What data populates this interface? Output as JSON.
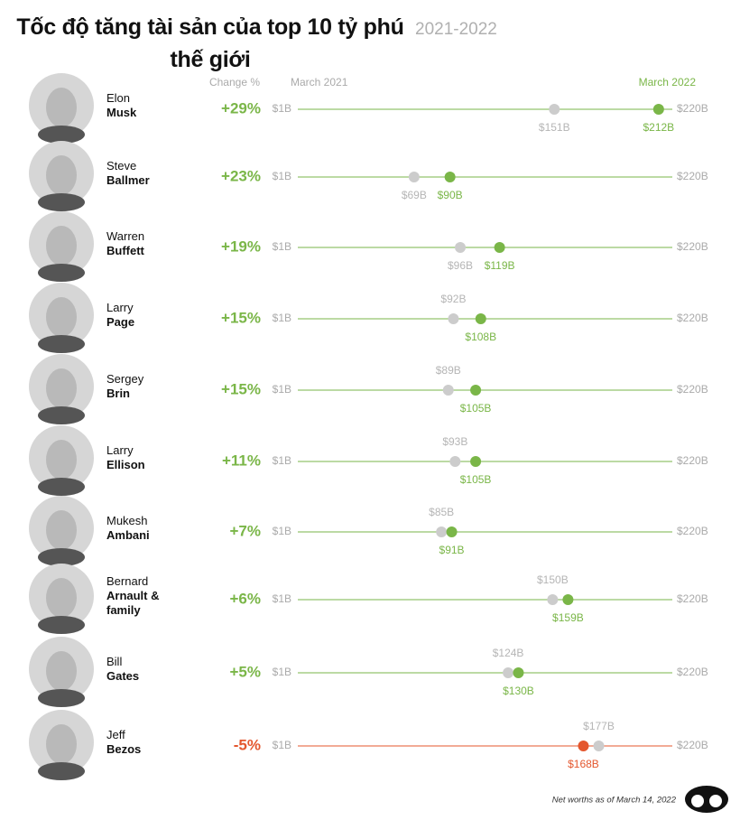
{
  "chart_data": {
    "type": "dumbbell",
    "title": "Tốc độ tăng tài sản của top 10 tỷ phú thế giới",
    "subtitle": "2021-2022",
    "change_header": "Change %",
    "first_names": [
      "Elon",
      "Steve",
      "Warren",
      "Larry",
      "Sergey",
      "Larry",
      "Mukesh",
      "Bernard",
      "Bill",
      "Jeff"
    ],
    "last_names": [
      "Musk",
      "Ballmer",
      "Buffett",
      "Page",
      "Brin",
      "Ellison",
      "Ambani",
      "Arnault & family",
      "Gates",
      "Bezos"
    ],
    "change": {
      "values": [
        29,
        23,
        19,
        15,
        15,
        11,
        7,
        6,
        5,
        -5
      ],
      "value_labels": [
        "+29%",
        "+23%",
        "+19%",
        "+15%",
        "+15%",
        "+11%",
        "+7%",
        "+6%",
        "+5%",
        "-5%"
      ]
    },
    "series": [
      {
        "name": "March 2021",
        "color": "#cccccc",
        "values": [
          151,
          69,
          96,
          92,
          89,
          93,
          85,
          150,
          124,
          177
        ],
        "value_labels": [
          "$151B",
          "$69B",
          "$96B",
          "$92B",
          "$89B",
          "$93B",
          "$85B",
          "$150B",
          "$124B",
          "$177B"
        ]
      },
      {
        "name": "March 2022",
        "color": "#7ab648",
        "negative_color": "#e4572e",
        "values": [
          212,
          90,
          119,
          108,
          105,
          105,
          91,
          159,
          130,
          168
        ],
        "value_labels": [
          "$212B",
          "$90B",
          "$119B",
          "$108B",
          "$105B",
          "$105B",
          "$91B",
          "$159B",
          "$130B",
          "$168B"
        ]
      }
    ],
    "xlim": [
      1,
      220
    ],
    "xticks": [
      {
        "value": 1,
        "label": "$1B"
      },
      {
        "value": 220,
        "label": "$220B"
      }
    ],
    "note": "Net worths as of March 14, 2022"
  }
}
